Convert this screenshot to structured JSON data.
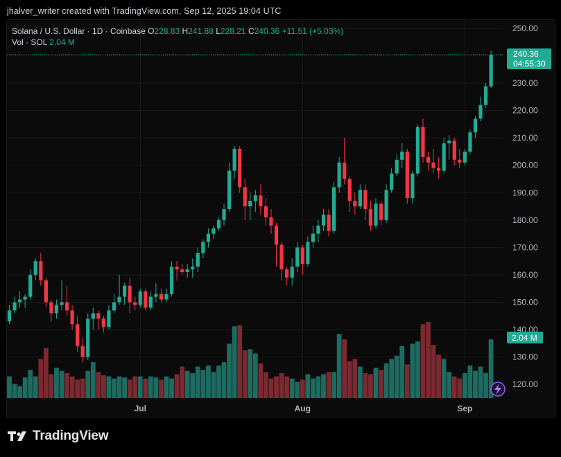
{
  "attribution": "jhalver_writer created with TradingView.com, Sep 12, 2025 19:04 UTC",
  "legend": {
    "symbol": "Solana / U.S. Dollar · 1D · Coinbase",
    "o_label": "O",
    "o_value": "228.83",
    "h_label": "H",
    "h_value": "241.88",
    "l_label": "L",
    "l_value": "228.21",
    "c_label": "C",
    "c_value": "240.36",
    "change": "+11.51 (+5.03%)",
    "vol_label": "Vol · SOL",
    "vol_value": "2.04 M"
  },
  "price_badge": {
    "price": "240.36",
    "countdown": "04:55:30"
  },
  "volume_badge": "2.04 M",
  "brand": "TradingView",
  "colors": {
    "up": "#22ab94",
    "down": "#f23645",
    "vol_up": "#1e6b61",
    "vol_down": "#7a2a30",
    "badge": "#22ab94"
  },
  "chart_data": {
    "type": "candlestick",
    "title": "Solana / U.S. Dollar · 1D · Coinbase",
    "y_axis": {
      "min": 115,
      "max": 253,
      "ticks": [
        "250.00",
        "240.00",
        "230.00",
        "220.00",
        "210.00",
        "200.00",
        "190.00",
        "180.00",
        "170.00",
        "160.00",
        "150.00",
        "140.00",
        "130.00",
        "120.00"
      ],
      "tick_values": [
        250,
        240,
        230,
        220,
        210,
        200,
        190,
        180,
        170,
        160,
        150,
        140,
        130,
        120
      ]
    },
    "x_axis": {
      "labels": [
        {
          "text": "Jul",
          "index": 25
        },
        {
          "text": "Aug",
          "index": 56
        },
        {
          "text": "Sep",
          "index": 87
        }
      ]
    },
    "last_price": 240.36,
    "grid": true,
    "candles": [
      [
        143,
        149,
        142,
        147
      ],
      [
        147,
        152,
        146,
        150
      ],
      [
        150,
        154,
        148,
        151
      ],
      [
        151,
        153,
        148,
        152
      ],
      [
        152,
        162,
        151,
        160
      ],
      [
        160,
        166,
        158,
        165
      ],
      [
        165,
        168,
        156,
        158
      ],
      [
        158,
        159,
        148,
        150
      ],
      [
        150,
        151,
        143,
        146
      ],
      [
        146,
        151,
        144,
        149
      ],
      [
        149,
        158,
        147,
        150
      ],
      [
        150,
        156,
        145,
        147
      ],
      [
        147,
        149,
        140,
        142
      ],
      [
        142,
        145,
        132,
        134
      ],
      [
        134,
        137,
        128,
        130
      ],
      [
        130,
        146,
        129,
        144
      ],
      [
        144,
        148,
        140,
        146
      ],
      [
        146,
        147,
        140,
        144
      ],
      [
        144,
        145,
        139,
        141
      ],
      [
        141,
        149,
        140,
        147
      ],
      [
        147,
        153,
        146,
        150
      ],
      [
        150,
        160,
        149,
        152
      ],
      [
        152,
        157,
        149,
        156
      ],
      [
        156,
        159,
        146,
        150
      ],
      [
        150,
        152,
        147,
        149
      ],
      [
        149,
        155,
        148,
        154
      ],
      [
        154,
        155,
        147,
        148
      ],
      [
        148,
        154,
        147,
        152
      ],
      [
        152,
        157,
        150,
        153
      ],
      [
        153,
        155,
        150,
        151
      ],
      [
        151,
        155,
        150,
        153
      ],
      [
        153,
        165,
        152,
        163
      ],
      [
        163,
        165,
        158,
        162
      ],
      [
        162,
        164,
        160,
        161
      ],
      [
        161,
        164,
        159,
        162
      ],
      [
        162,
        166,
        159,
        163
      ],
      [
        163,
        170,
        161,
        168
      ],
      [
        168,
        173,
        166,
        172
      ],
      [
        172,
        177,
        170,
        175
      ],
      [
        175,
        178,
        173,
        177
      ],
      [
        177,
        181,
        176,
        180
      ],
      [
        180,
        186,
        178,
        184
      ],
      [
        184,
        201,
        183,
        198
      ],
      [
        198,
        207,
        195,
        206
      ],
      [
        206,
        207,
        190,
        192
      ],
      [
        192,
        195,
        180,
        185
      ],
      [
        185,
        190,
        180,
        187
      ],
      [
        187,
        191,
        183,
        189
      ],
      [
        189,
        193,
        182,
        185
      ],
      [
        185,
        188,
        178,
        181
      ],
      [
        181,
        184,
        175,
        178
      ],
      [
        178,
        179,
        163,
        171
      ],
      [
        171,
        172,
        158,
        162
      ],
      [
        162,
        163,
        156,
        159
      ],
      [
        159,
        166,
        156,
        163
      ],
      [
        163,
        172,
        161,
        170
      ],
      [
        170,
        171,
        160,
        164
      ],
      [
        164,
        174,
        163,
        172
      ],
      [
        172,
        178,
        170,
        175
      ],
      [
        175,
        180,
        172,
        178
      ],
      [
        178,
        184,
        176,
        182
      ],
      [
        182,
        184,
        174,
        176
      ],
      [
        176,
        194,
        175,
        192
      ],
      [
        192,
        203,
        190,
        201
      ],
      [
        201,
        210,
        193,
        195
      ],
      [
        195,
        196,
        183,
        187
      ],
      [
        187,
        190,
        182,
        185
      ],
      [
        185,
        193,
        184,
        191
      ],
      [
        191,
        193,
        180,
        184
      ],
      [
        184,
        187,
        176,
        178
      ],
      [
        178,
        188,
        177,
        186
      ],
      [
        186,
        187,
        178,
        180
      ],
      [
        180,
        193,
        179,
        191
      ],
      [
        191,
        199,
        190,
        197
      ],
      [
        197,
        204,
        196,
        202
      ],
      [
        202,
        208,
        199,
        205
      ],
      [
        205,
        206,
        186,
        188
      ],
      [
        188,
        198,
        186,
        197
      ],
      [
        197,
        215,
        196,
        214
      ],
      [
        214,
        217,
        201,
        203
      ],
      [
        203,
        205,
        198,
        201
      ],
      [
        201,
        206,
        197,
        199
      ],
      [
        199,
        203,
        195,
        198
      ],
      [
        198,
        210,
        197,
        208
      ],
      [
        208,
        211,
        202,
        209
      ],
      [
        209,
        210,
        200,
        202
      ],
      [
        202,
        206,
        199,
        201
      ],
      [
        201,
        206,
        200,
        205
      ],
      [
        205,
        213,
        204,
        212
      ],
      [
        212,
        218,
        210,
        217
      ],
      [
        217,
        225,
        216,
        222
      ],
      [
        222,
        230,
        221,
        228.83
      ],
      [
        228.83,
        241.88,
        228.21,
        240.36
      ]
    ],
    "volume_scale_max": 140,
    "volumes": [
      40,
      26,
      22,
      38,
      52,
      40,
      72,
      92,
      44,
      56,
      50,
      46,
      40,
      34,
      36,
      50,
      66,
      48,
      42,
      40,
      36,
      40,
      38,
      34,
      40,
      40,
      36,
      40,
      38,
      34,
      40,
      36,
      44,
      58,
      50,
      46,
      58,
      52,
      60,
      48,
      60,
      66,
      100,
      132,
      134,
      88,
      90,
      82,
      64,
      48,
      36,
      40,
      46,
      40,
      36,
      30,
      34,
      44,
      36,
      40,
      44,
      48,
      48,
      118,
      108,
      68,
      72,
      58,
      46,
      44,
      56,
      52,
      64,
      72,
      78,
      96,
      62,
      100,
      104,
      136,
      140,
      98,
      80,
      72,
      48,
      40,
      36,
      46,
      60,
      50,
      58,
      46,
      108
    ]
  }
}
